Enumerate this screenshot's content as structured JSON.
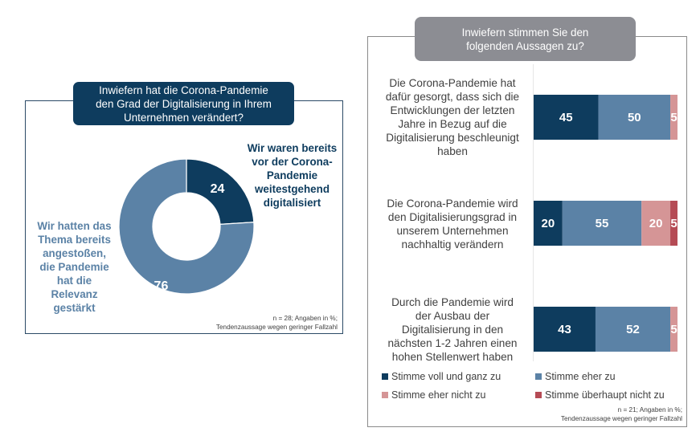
{
  "colors": {
    "dark_blue": "#0e3c5e",
    "mid_blue": "#5b82a6",
    "light_red": "#d59596",
    "dark_red": "#b54b55",
    "grey_title": "#8c8d93"
  },
  "left_panel": {
    "title_lines": [
      "Inwiefern  hat die Corona-Pandemie",
      "den Grad der Digitalisierung in Ihrem",
      "Unternehmen  verändert?"
    ],
    "label_24_lines": [
      "Wir waren bereits",
      "vor der Corona-",
      "Pandemie",
      "weitestgehend",
      "digitalisiert"
    ],
    "label_76_lines": [
      "Wir hatten das",
      "Thema bereits",
      "angestoßen,",
      "die Pandemie",
      "hat die",
      "Relevanz",
      "gestärkt"
    ],
    "note_lines": [
      "n = 28; Angaben in %;",
      "Tendenzaussage  wegen  geringer  Fallzahl"
    ]
  },
  "right_panel": {
    "title_lines": [
      "Inwiefern  stimmen Sie den",
      "folgenden Aussagen zu?"
    ],
    "statements": [
      {
        "lines": [
          "Die Corona-Pandemie hat",
          "dafür gesorgt, dass sich die",
          "Entwicklungen der letzten",
          "Jahre in Bezug auf die",
          "Digitalisierung beschleunigt",
          "haben"
        ]
      },
      {
        "lines": [
          "Die Corona-Pandemie wird",
          "den Digitalisierungsgrad in",
          "unserem Unternehmen",
          "nachhaltig verändern"
        ]
      },
      {
        "lines": [
          "Durch die Pandemie wird",
          "der Ausbau der",
          "Digitalisierung in den",
          "nächsten 1-2 Jahren einen",
          "hohen Stellenwert haben"
        ]
      }
    ],
    "legend": [
      {
        "label": "Stimme voll und ganz zu",
        "color": "#0e3c5e"
      },
      {
        "label": "Stimme eher zu",
        "color": "#5b82a6"
      },
      {
        "label": "Stimme eher nicht zu",
        "color": "#d59596"
      },
      {
        "label": "Stimme überhaupt nicht zu",
        "color": "#b54b55"
      }
    ],
    "note_lines": [
      "n = 21; Angaben in %;",
      "Tendenzaussage  wegen  geringer  Fallzahl"
    ]
  },
  "chart_data": [
    {
      "type": "pie",
      "title": "Inwiefern hat die Corona-Pandemie den Grad der Digitalisierung in Ihrem Unternehmen verändert?",
      "donut": true,
      "categories": [
        "Wir waren bereits vor der Corona-Pandemie weitestgehend digitalisiert",
        "Wir hatten das Thema bereits angestoßen, die Pandemie hat die Relevanz gestärkt"
      ],
      "values": [
        24,
        76
      ],
      "data_labels": [
        "24",
        "76"
      ],
      "colors": [
        "#0e3c5e",
        "#5b82a6"
      ],
      "unit": "%"
    },
    {
      "type": "bar",
      "orientation": "horizontal",
      "stacked": true,
      "title": "Inwiefern stimmen Sie den folgenden Aussagen zu?",
      "categories": [
        "Die Corona-Pandemie hat dafür gesorgt, dass sich die Entwicklungen der letzten Jahre in Bezug auf die Digitalisierung beschleunigt haben",
        "Die Corona-Pandemie wird den Digitalisierungsgrad in unserem Unternehmen nachhaltig verändern",
        "Durch die Pandemie wird der Ausbau der Digitalisierung in den nächsten 1-2 Jahren einen hohen Stellenwert haben"
      ],
      "series": [
        {
          "name": "Stimme voll und ganz zu",
          "values": [
            45,
            20,
            43
          ],
          "color": "#0e3c5e"
        },
        {
          "name": "Stimme eher zu",
          "values": [
            50,
            55,
            52
          ],
          "color": "#5b82a6"
        },
        {
          "name": "Stimme eher nicht zu",
          "values": [
            5,
            20,
            5
          ],
          "color": "#d59596"
        },
        {
          "name": "Stimme überhaupt nicht zu",
          "values": [
            0,
            5,
            0
          ],
          "color": "#b54b55"
        }
      ],
      "xlim": [
        0,
        100
      ],
      "unit": "%",
      "legend_position": "bottom"
    }
  ]
}
